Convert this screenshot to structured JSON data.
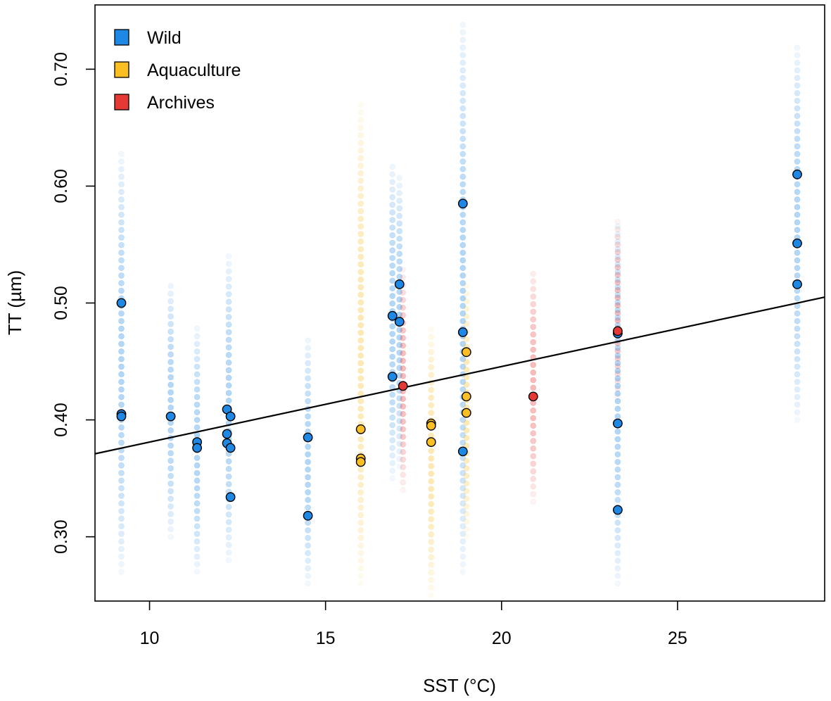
{
  "chart_data": {
    "type": "scatter",
    "title": "",
    "xlabel": "SST (°C)",
    "ylabel": "TT (µm)",
    "xlim": [
      8.45,
      29.18
    ],
    "ylim": [
      0.245,
      0.755
    ],
    "x_ticks": [
      10,
      15,
      20,
      25
    ],
    "x_tick_labels": [
      "10",
      "15",
      "20",
      "25"
    ],
    "y_ticks": [
      0.3,
      0.4,
      0.5,
      0.6,
      0.7
    ],
    "y_tick_labels": [
      "0.30",
      "0.40",
      "0.50",
      "0.60",
      "0.70"
    ],
    "grid": false,
    "legend_position": "top-left",
    "legend": [
      {
        "label": "Wild",
        "color": "#1E88E5"
      },
      {
        "label": "Aquaculture",
        "color": "#FBBF24"
      },
      {
        "label": "Archives",
        "color": "#E53935"
      }
    ],
    "regression_line": {
      "x": [
        8.45,
        29.18
      ],
      "y": [
        0.371,
        0.505
      ],
      "color": "#000000"
    },
    "series": [
      {
        "name": "Wild",
        "color": "#1E88E5",
        "points": [
          {
            "x": 9.2,
            "y": 0.5
          },
          {
            "x": 9.2,
            "y": 0.405
          },
          {
            "x": 9.2,
            "y": 0.403
          },
          {
            "x": 10.6,
            "y": 0.403
          },
          {
            "x": 11.35,
            "y": 0.381
          },
          {
            "x": 11.35,
            "y": 0.376
          },
          {
            "x": 12.2,
            "y": 0.409
          },
          {
            "x": 12.3,
            "y": 0.403
          },
          {
            "x": 12.2,
            "y": 0.388
          },
          {
            "x": 12.2,
            "y": 0.38
          },
          {
            "x": 12.3,
            "y": 0.376
          },
          {
            "x": 12.3,
            "y": 0.334
          },
          {
            "x": 14.5,
            "y": 0.385
          },
          {
            "x": 14.5,
            "y": 0.318
          },
          {
            "x": 16.9,
            "y": 0.489
          },
          {
            "x": 16.9,
            "y": 0.437
          },
          {
            "x": 17.1,
            "y": 0.516
          },
          {
            "x": 17.1,
            "y": 0.484
          },
          {
            "x": 18.9,
            "y": 0.585
          },
          {
            "x": 18.9,
            "y": 0.475
          },
          {
            "x": 18.9,
            "y": 0.373
          },
          {
            "x": 23.3,
            "y": 0.474
          },
          {
            "x": 23.3,
            "y": 0.397
          },
          {
            "x": 23.3,
            "y": 0.323
          },
          {
            "x": 28.4,
            "y": 0.61
          },
          {
            "x": 28.4,
            "y": 0.551
          },
          {
            "x": 28.4,
            "y": 0.516
          }
        ]
      },
      {
        "name": "Aquaculture",
        "color": "#FBBF24",
        "points": [
          {
            "x": 16.0,
            "y": 0.392
          },
          {
            "x": 16.0,
            "y": 0.367
          },
          {
            "x": 16.0,
            "y": 0.364
          },
          {
            "x": 18.0,
            "y": 0.397
          },
          {
            "x": 18.0,
            "y": 0.395
          },
          {
            "x": 18.0,
            "y": 0.381
          },
          {
            "x": 19.0,
            "y": 0.458
          },
          {
            "x": 19.0,
            "y": 0.42
          },
          {
            "x": 19.0,
            "y": 0.406
          }
        ]
      },
      {
        "name": "Archives",
        "color": "#E53935",
        "points": [
          {
            "x": 17.2,
            "y": 0.429
          },
          {
            "x": 20.9,
            "y": 0.42
          },
          {
            "x": 23.3,
            "y": 0.476
          }
        ]
      }
    ],
    "background_distributions": [
      {
        "series": "Wild",
        "x": 9.2,
        "ymin": 0.27,
        "ymax": 0.63
      },
      {
        "series": "Wild",
        "x": 10.6,
        "ymin": 0.3,
        "ymax": 0.52
      },
      {
        "series": "Wild",
        "x": 11.35,
        "ymin": 0.27,
        "ymax": 0.48
      },
      {
        "series": "Wild",
        "x": 12.25,
        "ymin": 0.28,
        "ymax": 0.54
      },
      {
        "series": "Wild",
        "x": 14.5,
        "ymin": 0.26,
        "ymax": 0.47
      },
      {
        "series": "Aquaculture",
        "x": 16.0,
        "ymin": 0.26,
        "ymax": 0.67
      },
      {
        "series": "Wild",
        "x": 16.9,
        "ymin": 0.35,
        "ymax": 0.62
      },
      {
        "series": "Wild",
        "x": 17.1,
        "ymin": 0.36,
        "ymax": 0.61
      },
      {
        "series": "Archives",
        "x": 17.2,
        "ymin": 0.34,
        "ymax": 0.53
      },
      {
        "series": "Aquaculture",
        "x": 18.0,
        "ymin": 0.25,
        "ymax": 0.48
      },
      {
        "series": "Wild",
        "x": 18.9,
        "ymin": 0.27,
        "ymax": 0.74
      },
      {
        "series": "Aquaculture",
        "x": 19.0,
        "ymin": 0.3,
        "ymax": 0.52
      },
      {
        "series": "Archives",
        "x": 20.9,
        "ymin": 0.33,
        "ymax": 0.53
      },
      {
        "series": "Archives",
        "x": 23.3,
        "ymin": 0.42,
        "ymax": 0.57
      },
      {
        "series": "Wild",
        "x": 23.3,
        "ymin": 0.26,
        "ymax": 0.57
      },
      {
        "series": "Wild",
        "x": 28.4,
        "ymin": 0.4,
        "ymax": 0.72
      }
    ]
  }
}
